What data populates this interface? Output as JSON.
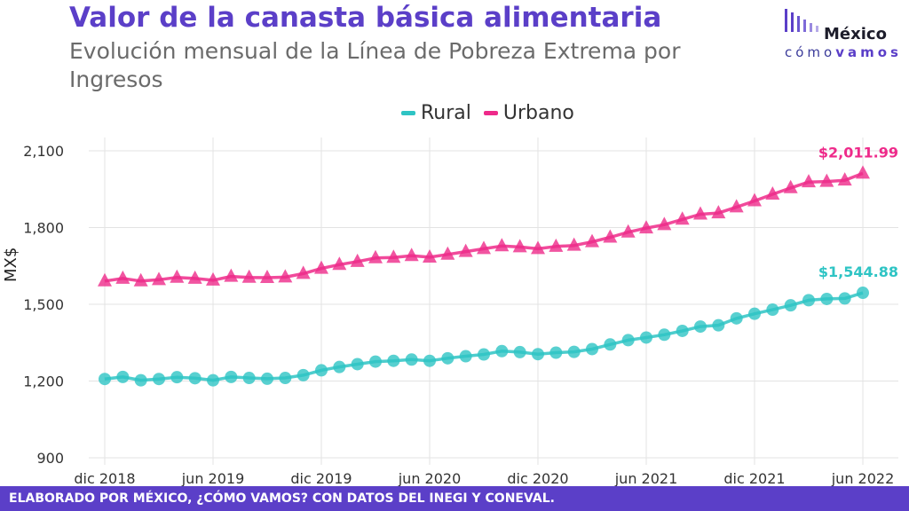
{
  "title": "Valor de la canasta básica alimentaria",
  "subtitle": "Evolución mensual de la Línea de Pobreza Extrema por Ingresos",
  "logo": {
    "top": "México",
    "bottom_a": "cómo",
    "bottom_b": "vamos"
  },
  "footer": "ELABORADO POR MÉXICO, ¿CÓMO VAMOS? CON DATOS DEL INEGI Y CONEVAL.",
  "colors": {
    "rural": "#2ec4c4",
    "urbano": "#ee2a8a",
    "accent": "#5b3fc8"
  },
  "chart_data": {
    "type": "line",
    "ylabel": "MX$",
    "xlabel": "",
    "ylim": [
      900,
      2100
    ],
    "yticks": [
      900,
      1200,
      1500,
      1800,
      2100
    ],
    "ytick_labels": [
      "900",
      "1,200",
      "1,500",
      "1,800",
      "2,100"
    ],
    "x_start": "2018-12",
    "xticks": [
      {
        "label": "dic 2018",
        "date": "2018-12"
      },
      {
        "label": "jun 2019",
        "date": "2019-06"
      },
      {
        "label": "dic 2019",
        "date": "2019-12"
      },
      {
        "label": "jun 2020",
        "date": "2020-06"
      },
      {
        "label": "dic 2020",
        "date": "2020-12"
      },
      {
        "label": "jun 2021",
        "date": "2021-06"
      },
      {
        "label": "dic 2021",
        "date": "2021-12"
      },
      {
        "label": "jun 2022",
        "date": "2022-06"
      }
    ],
    "grid": true,
    "legend_position": "top-center",
    "series": [
      {
        "name": "Rural",
        "marker": "circle",
        "end_label": "$1,544.88",
        "values": [
          1208,
          1216,
          1203,
          1208,
          1215,
          1211,
          1203,
          1216,
          1212,
          1209,
          1212,
          1223,
          1242,
          1255,
          1266,
          1276,
          1279,
          1284,
          1279,
          1289,
          1297,
          1304,
          1317,
          1313,
          1305,
          1311,
          1314,
          1325,
          1343,
          1360,
          1370,
          1381,
          1396,
          1413,
          1418,
          1445,
          1463,
          1479,
          1496,
          1516,
          1521,
          1523,
          1544.88
        ]
      },
      {
        "name": "Urbano",
        "marker": "triangle",
        "end_label": "$2,011.99",
        "values": [
          1591,
          1601,
          1591,
          1596,
          1605,
          1601,
          1594,
          1609,
          1605,
          1604,
          1606,
          1620,
          1640,
          1655,
          1667,
          1681,
          1683,
          1690,
          1684,
          1695,
          1706,
          1717,
          1728,
          1724,
          1717,
          1726,
          1730,
          1744,
          1762,
          1782,
          1798,
          1811,
          1832,
          1852,
          1857,
          1880,
          1904,
          1930,
          1955,
          1978,
          1980,
          1985,
          2011.99
        ]
      }
    ]
  }
}
